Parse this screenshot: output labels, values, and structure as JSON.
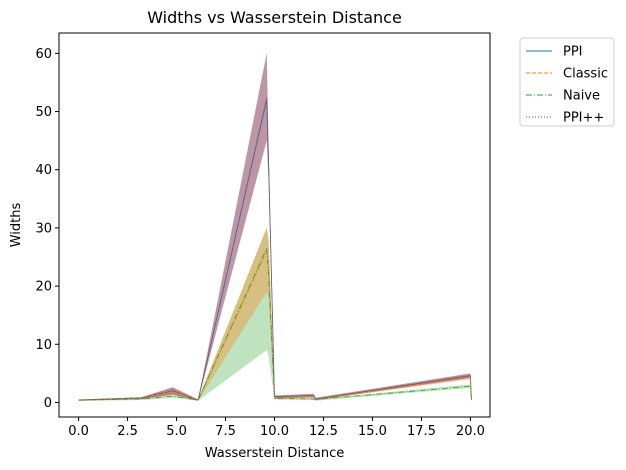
{
  "chart_data": {
    "type": "line",
    "title": "Widths vs Wasserstein Distance",
    "xlabel": "Wasserstein Distance",
    "ylabel": "Widths",
    "xlim": [
      -1.0,
      21.0
    ],
    "ylim": [
      -2.5,
      63.5
    ],
    "xticks": [
      "0.0",
      "2.5",
      "5.0",
      "7.5",
      "10.0",
      "12.5",
      "15.0",
      "17.5",
      "20.0"
    ],
    "yticks": [
      "0",
      "10",
      "20",
      "30",
      "40",
      "50",
      "60"
    ],
    "grid": false,
    "legend_position": "outside-top-right",
    "x": [
      0.0,
      3.2,
      4.8,
      6.1,
      9.6,
      9.7,
      10.0,
      12.0,
      12.1,
      20.0,
      20.05
    ],
    "series": [
      {
        "name": "PPI",
        "style": "solid",
        "color": "#1f77b4",
        "values": [
          0.4,
          0.8,
          2.0,
          0.4,
          52.0,
          41.0,
          1.0,
          1.2,
          0.6,
          4.6,
          0.5
        ],
        "band_low": [
          0.3,
          0.6,
          1.4,
          0.3,
          45.0,
          38.0,
          0.7,
          0.9,
          0.4,
          4.2,
          0.3
        ],
        "band_high": [
          0.5,
          0.9,
          2.6,
          0.5,
          60.0,
          44.0,
          1.2,
          1.5,
          0.8,
          5.0,
          0.7
        ]
      },
      {
        "name": "Classic",
        "style": "dashed",
        "color": "#ff7f0e",
        "values": [
          0.4,
          0.8,
          1.9,
          0.4,
          26.0,
          24.0,
          0.8,
          1.1,
          0.5,
          4.4,
          0.4
        ],
        "band_low": [
          0.3,
          0.6,
          1.3,
          0.3,
          19.0,
          18.0,
          0.6,
          0.8,
          0.4,
          4.0,
          0.3
        ],
        "band_high": [
          0.5,
          0.9,
          2.4,
          0.5,
          30.0,
          28.0,
          1.0,
          1.3,
          0.7,
          4.8,
          0.6
        ]
      },
      {
        "name": "Naive",
        "style": "dashdot",
        "color": "#2ca02c",
        "values": [
          0.4,
          0.6,
          1.1,
          0.4,
          26.5,
          22.0,
          0.7,
          0.6,
          0.5,
          2.8,
          0.3
        ],
        "band_low": [
          0.3,
          0.4,
          0.8,
          0.3,
          9.0,
          8.0,
          0.5,
          0.4,
          0.3,
          2.5,
          0.2
        ],
        "band_high": [
          0.5,
          0.8,
          1.5,
          0.5,
          30.0,
          28.0,
          0.9,
          0.8,
          0.6,
          3.1,
          0.5
        ]
      },
      {
        "name": "PPI++",
        "style": "dotted",
        "color": "#d62728",
        "values": [
          0.4,
          0.8,
          2.0,
          0.4,
          52.5,
          41.0,
          1.0,
          1.2,
          0.6,
          4.6,
          0.5
        ],
        "band_low": [
          0.3,
          0.6,
          1.4,
          0.3,
          45.0,
          38.0,
          0.7,
          0.9,
          0.4,
          4.2,
          0.3
        ],
        "band_high": [
          0.5,
          0.9,
          2.6,
          0.5,
          60.0,
          44.0,
          1.2,
          1.5,
          0.8,
          5.0,
          0.7
        ]
      }
    ]
  }
}
